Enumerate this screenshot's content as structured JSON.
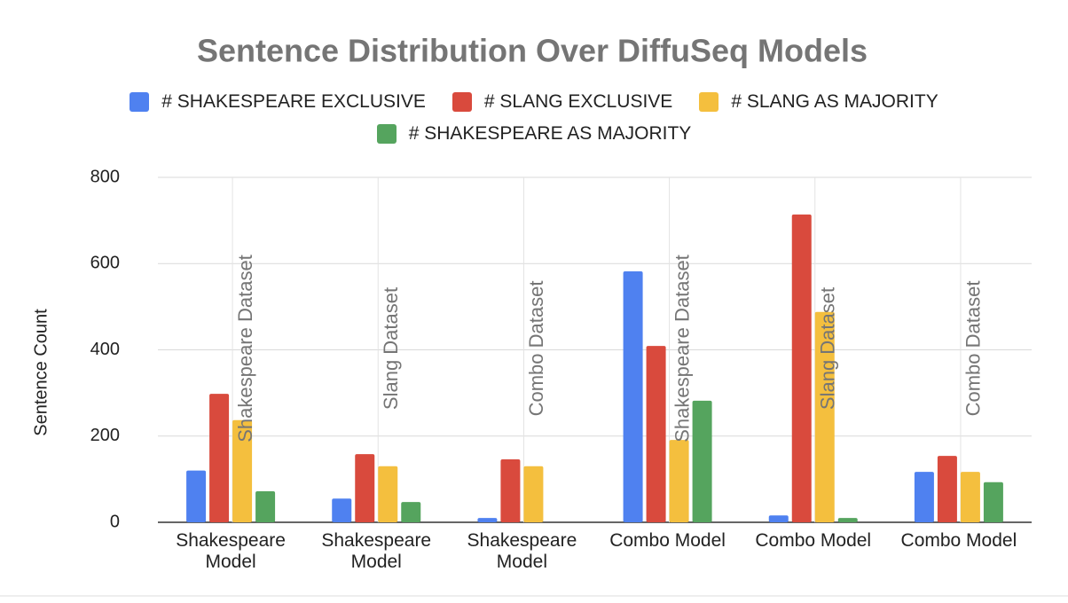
{
  "chart_data": {
    "type": "bar",
    "title": "Sentence Distribution Over DiffuSeq Models",
    "y_label": "Sentence Count",
    "categories": [
      "Shakespeare Model",
      "Shakespeare Model",
      "Shakespeare Model",
      "Combo Model",
      "Combo Model",
      "Combo Model"
    ],
    "annotations": [
      "Shakespeare Dataset",
      "Slang Dataset",
      "Combo Dataset",
      "Shakespeare Dataset",
      "Slang Dataset",
      "Combo Dataset"
    ],
    "series": [
      {
        "name": "# SHAKESPEARE EXCLUSIVE",
        "color": "#4f81f0",
        "values": [
          120,
          55,
          10,
          582,
          16,
          117
        ]
      },
      {
        "name": "# SLANG EXCLUSIVE",
        "color": "#d94a3d",
        "values": [
          298,
          158,
          146,
          409,
          714,
          154
        ]
      },
      {
        "name": "# SLANG AS MAJORITY",
        "color": "#f4bf3e",
        "values": [
          237,
          130,
          130,
          191,
          488,
          117
        ]
      },
      {
        "name": "# SHAKESPEARE AS MAJORITY",
        "color": "#55a45e",
        "values": [
          72,
          47,
          0,
          282,
          10,
          93
        ]
      }
    ],
    "ylim": [
      0,
      800
    ],
    "yticks": [
      0,
      200,
      400,
      600,
      800
    ],
    "grid": true
  }
}
